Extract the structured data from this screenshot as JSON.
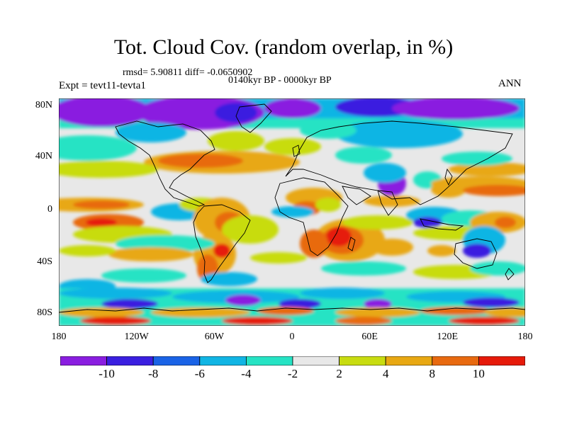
{
  "title": "Tot. Cloud Cov. (random overlap, in %)",
  "stats": "rmsd= 5.90811 diff= -0.0650902",
  "period": "0140kyr BP - 0000kyr BP",
  "experiment": "Expt = tevt11-tevta1",
  "season": "ANN",
  "lat_ticks": [
    "80N",
    "40N",
    "0",
    "40S",
    "80S"
  ],
  "lon_ticks": [
    "180",
    "120W",
    "60W",
    "0",
    "60E",
    "120E",
    "180"
  ],
  "colorbar": {
    "colors": [
      "#8a1ee0",
      "#3a1fe0",
      "#1a63e6",
      "#11b5e4",
      "#26e3c4",
      "#e8e8e8",
      "#c8dc10",
      "#e8a812",
      "#e86a10",
      "#e61a0a"
    ],
    "labels": [
      "-10",
      "-8",
      "-6",
      "-4",
      "-2",
      "2",
      "4",
      "8",
      "10"
    ]
  }
}
